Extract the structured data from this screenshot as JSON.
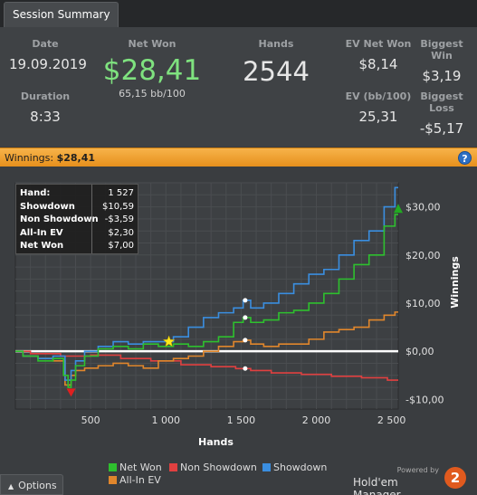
{
  "tab": {
    "label": "Session Summary"
  },
  "summary": {
    "date": {
      "label": "Date",
      "value": "19.09.2019"
    },
    "duration": {
      "label": "Duration",
      "value": "8:33"
    },
    "net_won": {
      "label": "Net Won",
      "value": "$28,41",
      "sub": "65,15 bb/100"
    },
    "hands": {
      "label": "Hands",
      "value": "2544"
    },
    "ev_net_won": {
      "label": "EV Net Won",
      "value": "$8,14"
    },
    "ev_bb100": {
      "label": "EV (bb/100)",
      "value": "25,31"
    },
    "biggest_win": {
      "label": "Biggest Win",
      "value": "$3,19"
    },
    "biggest_loss": {
      "label": "Biggest Loss",
      "value": "-$5,17"
    }
  },
  "winnings_bar": {
    "label": "Winnings:",
    "value": "$28,41",
    "help": "?"
  },
  "tooltip": {
    "rows": [
      {
        "k": "Hand:",
        "v": "1 527"
      },
      {
        "k": "Showdown",
        "v": "$10,59"
      },
      {
        "k": "Non Showdown",
        "v": "-$3,59"
      },
      {
        "k": "All-In EV",
        "v": "$2,30"
      },
      {
        "k": "Net Won",
        "v": "$7,00"
      }
    ]
  },
  "colors": {
    "net_won": "#2ec02e",
    "non_showdown": "#e04040",
    "showdown": "#3a8ee0",
    "allin_ev": "#e0862c",
    "accent": "#f0a030"
  },
  "chart_data": {
    "type": "line",
    "xlabel": "Hands",
    "ylabel": "Winnings",
    "xlim": [
      0,
      2544
    ],
    "ylim": [
      -12,
      35
    ],
    "x_ticks": [
      500,
      1000,
      1500,
      2000,
      2500
    ],
    "x_tick_labels": [
      "500",
      "1 000",
      "1 500",
      "2 000",
      "2 500"
    ],
    "y_ticks": [
      -10,
      0,
      10,
      20,
      30
    ],
    "y_tick_labels": [
      "-$10,00",
      "$0,00",
      "$10,00",
      "$20,00",
      "$30,00"
    ],
    "grid": true,
    "legend_position": "bottom",
    "series": [
      {
        "name": "Net Won",
        "color_key": "net_won",
        "x": [
          0,
          100,
          200,
          300,
          340,
          360,
          380,
          420,
          500,
          600,
          700,
          800,
          900,
          1000,
          1100,
          1200,
          1300,
          1400,
          1500,
          1527,
          1600,
          1700,
          1800,
          1900,
          2000,
          2100,
          2200,
          2300,
          2400,
          2500,
          2544
        ],
        "y": [
          0,
          -1,
          -2,
          -1.5,
          -5,
          -7.5,
          -6,
          -3,
          -1,
          0.5,
          1,
          0.5,
          1.5,
          1,
          1.5,
          1,
          2,
          3,
          6,
          7,
          6,
          6.5,
          8,
          8.5,
          10,
          12,
          15,
          18,
          20,
          26,
          28.41
        ]
      },
      {
        "name": "Non Showdown",
        "x": [
          0,
          200,
          400,
          600,
          800,
          1000,
          1200,
          1400,
          1527,
          1600,
          1800,
          2000,
          2200,
          2400,
          2544
        ],
        "color_key": "non_showdown",
        "y": [
          0,
          -0.5,
          -1,
          -0.8,
          -1.5,
          -2,
          -2.8,
          -3.2,
          -3.59,
          -4,
          -4.5,
          -4.8,
          -5.2,
          -5.5,
          -6
        ]
      },
      {
        "name": "Showdown",
        "color_key": "showdown",
        "x": [
          0,
          100,
          200,
          300,
          360,
          380,
          420,
          500,
          600,
          700,
          800,
          900,
          1000,
          1100,
          1200,
          1300,
          1400,
          1500,
          1527,
          1600,
          1700,
          1800,
          1900,
          2000,
          2100,
          2200,
          2300,
          2400,
          2500,
          2544
        ],
        "y": [
          0,
          -1,
          -1.5,
          -1,
          -6,
          -4,
          -2,
          0,
          1,
          2,
          1.5,
          2,
          2,
          3,
          5,
          7,
          8,
          9,
          10.59,
          9,
          10,
          12,
          14,
          16,
          17,
          20,
          23,
          25,
          30,
          34
        ]
      },
      {
        "name": "All-In EV",
        "color_key": "allin_ev",
        "x": [
          0,
          100,
          200,
          300,
          360,
          380,
          420,
          500,
          600,
          700,
          800,
          900,
          1000,
          1100,
          1200,
          1300,
          1400,
          1500,
          1527,
          1600,
          1700,
          1800,
          1900,
          2000,
          2100,
          2200,
          2300,
          2400,
          2500,
          2544
        ],
        "y": [
          0,
          -1,
          -1.5,
          -2,
          -7,
          -5,
          -4,
          -3.5,
          -3,
          -2.5,
          -3,
          -3.5,
          -2,
          -1.5,
          -1,
          0,
          1,
          2,
          2.3,
          1.5,
          1,
          1.5,
          1.5,
          2.5,
          4,
          4.5,
          5,
          6.5,
          7.5,
          8.14
        ]
      }
    ],
    "markers": [
      {
        "type": "max",
        "series": "Net Won",
        "x": 2544,
        "y": 29.5
      },
      {
        "type": "min",
        "series": "Net Won",
        "x": 370,
        "y": -8.5
      },
      {
        "type": "star",
        "series": "Net Won",
        "x": 1020,
        "y": 2
      }
    ]
  },
  "legend": {
    "items": [
      {
        "label": "Net Won",
        "color_key": "net_won"
      },
      {
        "label": "Non Showdown",
        "color_key": "non_showdown"
      },
      {
        "label": "Showdown",
        "color_key": "showdown"
      },
      {
        "label": "All-In EV",
        "color_key": "allin_ev"
      }
    ]
  },
  "options": {
    "label": "Options",
    "icon": "chevron-up-icon"
  },
  "brand": {
    "powered_by": "Powered by",
    "name": "Hold'em Manager",
    "logo": "2"
  }
}
